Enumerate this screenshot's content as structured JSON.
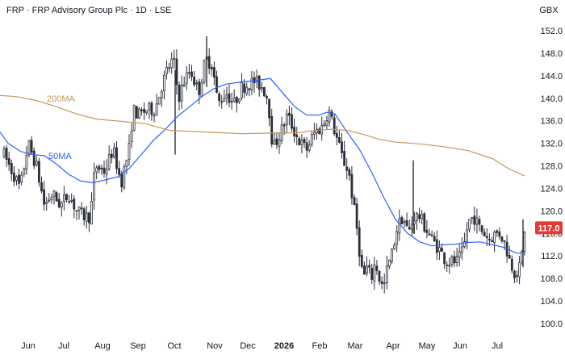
{
  "header": {
    "title": "FRP · FRP Advisory Group Plc · 1D · LSE",
    "currency": "GBX"
  },
  "colors": {
    "up": "#26a69a",
    "down": "#ef5350",
    "candle": "#2a2e39",
    "ma50": "#2962ff",
    "ma200": "#c8965a",
    "last_price_bg": "#e53935",
    "axis_text": "#131722"
  },
  "chart_data": {
    "type": "candlestick",
    "ylim": [
      100,
      152
    ],
    "y_ticks": [
      "152.0",
      "148.0",
      "144.0",
      "140.0",
      "136.0",
      "132.0",
      "128.0",
      "124.0",
      "120.0",
      "116.0",
      "112.0",
      "108.0",
      "104.0",
      "100.0"
    ],
    "x_ticks": [
      "Jun",
      "Jul",
      "Aug",
      "Sep",
      "Oct",
      "Nov",
      "Dec",
      "2026",
      "Feb",
      "Mar",
      "Apr",
      "May",
      "Jun",
      "Jul"
    ],
    "last_price": "117.0",
    "series": [
      {
        "name": "50MA",
        "values": [
          [
            0,
            134
          ],
          [
            10,
            132
          ],
          [
            25,
            130.6
          ],
          [
            40,
            130
          ],
          [
            55,
            129.8
          ],
          [
            70,
            128.3
          ],
          [
            85,
            126.5
          ],
          [
            100,
            125.3
          ],
          [
            115,
            125
          ],
          [
            130,
            125.5
          ],
          [
            145,
            126
          ],
          [
            160,
            127.5
          ],
          [
            175,
            130
          ],
          [
            190,
            132.5
          ],
          [
            205,
            134.5
          ],
          [
            220,
            136.8
          ],
          [
            235,
            138.5
          ],
          [
            250,
            140.3
          ],
          [
            265,
            141.7
          ],
          [
            280,
            142.5
          ],
          [
            300,
            142.9
          ],
          [
            320,
            143.2
          ],
          [
            335,
            143.5
          ],
          [
            350,
            141
          ],
          [
            365,
            138.5
          ],
          [
            380,
            137
          ],
          [
            395,
            137
          ],
          [
            405,
            137.5
          ],
          [
            415,
            137.2
          ],
          [
            430,
            134
          ],
          [
            445,
            131
          ],
          [
            460,
            127
          ],
          [
            475,
            122.5
          ],
          [
            490,
            118.5
          ],
          [
            505,
            116
          ],
          [
            520,
            114.5
          ],
          [
            535,
            113.8
          ],
          [
            550,
            114
          ],
          [
            565,
            114.1
          ],
          [
            580,
            114.4
          ],
          [
            595,
            114.5
          ],
          [
            610,
            114
          ],
          [
            625,
            113.5
          ],
          [
            640,
            112.5
          ],
          [
            650,
            112.5
          ]
        ]
      },
      {
        "name": "200MA",
        "values": [
          [
            0,
            140.5
          ],
          [
            20,
            140.3
          ],
          [
            45,
            139.6
          ],
          [
            70,
            138.5
          ],
          [
            95,
            137.2
          ],
          [
            120,
            136.3
          ],
          [
            150,
            135.9
          ],
          [
            180,
            135.5
          ],
          [
            210,
            134.3
          ],
          [
            240,
            134.1
          ],
          [
            270,
            133.9
          ],
          [
            300,
            133.7
          ],
          [
            330,
            133.8
          ],
          [
            350,
            133.8
          ],
          [
            370,
            133.9
          ],
          [
            390,
            134.3
          ],
          [
            410,
            134.5
          ],
          [
            430,
            134.3
          ],
          [
            450,
            133.6
          ],
          [
            470,
            132.7
          ],
          [
            490,
            132.2
          ],
          [
            520,
            131.9
          ],
          [
            550,
            131.4
          ],
          [
            580,
            130.7
          ],
          [
            610,
            129.3
          ],
          [
            630,
            127.5
          ],
          [
            650,
            126.2
          ]
        ]
      }
    ],
    "ohlc_path": [
      [
        5,
        130
      ],
      [
        15,
        127
      ],
      [
        25,
        124
      ],
      [
        35,
        132
      ],
      [
        45,
        128
      ],
      [
        55,
        121
      ],
      [
        65,
        123
      ],
      [
        75,
        121
      ],
      [
        85,
        123
      ],
      [
        95,
        120
      ],
      [
        105,
        119
      ],
      [
        112,
        119
      ],
      [
        118,
        128
      ],
      [
        130,
        127
      ],
      [
        140,
        131
      ],
      [
        150,
        125
      ],
      [
        160,
        131
      ],
      [
        165,
        138
      ],
      [
        172,
        137
      ],
      [
        182,
        138
      ],
      [
        192,
        138
      ],
      [
        200,
        142
      ],
      [
        207,
        145
      ],
      [
        215,
        147
      ],
      [
        221,
        140
      ],
      [
        228,
        143
      ],
      [
        236,
        145
      ],
      [
        246,
        141
      ],
      [
        255,
        147
      ],
      [
        263,
        146
      ],
      [
        270,
        139
      ],
      [
        280,
        141
      ],
      [
        290,
        139
      ],
      [
        300,
        142
      ],
      [
        315,
        143
      ],
      [
        325,
        142
      ],
      [
        332,
        140
      ],
      [
        338,
        131
      ],
      [
        348,
        134
      ],
      [
        356,
        137
      ],
      [
        365,
        134
      ],
      [
        372,
        132
      ],
      [
        380,
        131
      ],
      [
        390,
        134
      ],
      [
        400,
        135
      ],
      [
        407,
        138
      ],
      [
        415,
        134
      ],
      [
        425,
        129
      ],
      [
        432,
        127
      ],
      [
        438,
        121
      ],
      [
        442,
        117
      ],
      [
        446,
        112
      ],
      [
        450,
        108
      ],
      [
        455,
        110
      ],
      [
        460,
        108
      ],
      [
        465,
        111
      ],
      [
        470,
        108
      ],
      [
        475,
        106
      ],
      [
        480,
        110
      ],
      [
        485,
        112
      ],
      [
        492,
        117
      ],
      [
        499,
        119
      ],
      [
        506,
        116
      ],
      [
        513,
        119
      ],
      [
        520,
        119
      ],
      [
        527,
        117
      ],
      [
        535,
        115
      ],
      [
        545,
        113
      ],
      [
        553,
        111
      ],
      [
        560,
        111
      ],
      [
        567,
        111
      ],
      [
        574,
        113
      ],
      [
        580,
        118
      ],
      [
        587,
        119
      ],
      [
        594,
        117
      ],
      [
        600,
        116
      ],
      [
        606,
        115
      ],
      [
        614,
        116
      ],
      [
        620,
        116
      ],
      [
        626,
        114
      ],
      [
        632,
        111
      ],
      [
        638,
        109
      ],
      [
        645,
        110
      ],
      [
        650,
        117
      ]
    ]
  }
}
